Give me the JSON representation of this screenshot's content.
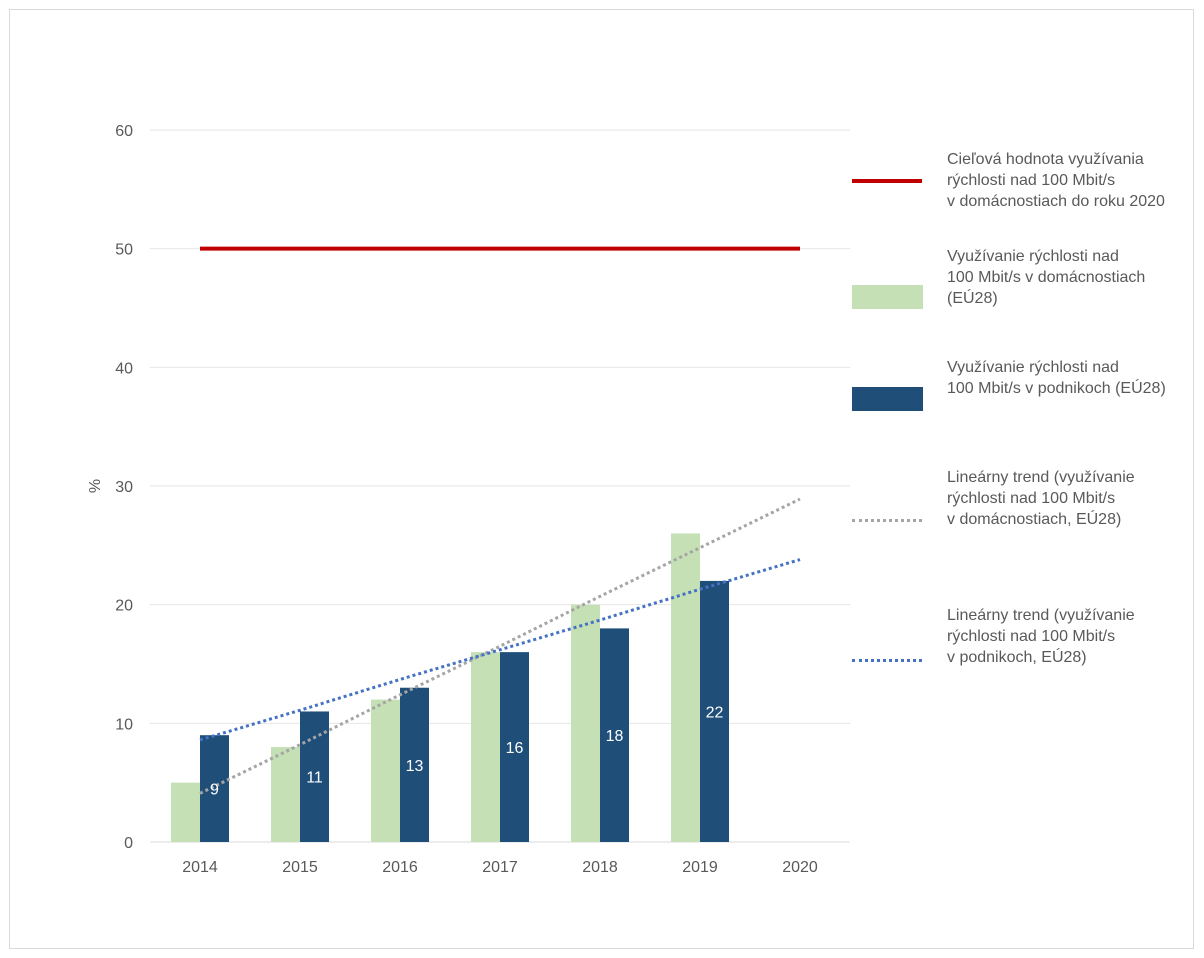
{
  "chart_data": {
    "type": "bar",
    "categories": [
      "2014",
      "2015",
      "2016",
      "2017",
      "2018",
      "2019",
      "2020"
    ],
    "ylabel": "%",
    "ylim": [
      0,
      60
    ],
    "yticks": [
      0,
      10,
      20,
      30,
      40,
      50,
      60
    ],
    "grid": true,
    "legend_position": "right",
    "series": [
      {
        "kind": "bar",
        "color": "#c5e0b4",
        "values": [
          5,
          8,
          12,
          16,
          20,
          26,
          null
        ],
        "legend_lines": [
          "Využívanie rýchlosti nad",
          "100 Mbit/s v domácnostiach",
          "(EÚ28)"
        ]
      },
      {
        "kind": "bar",
        "color": "#1f4e79",
        "values": [
          9,
          11,
          13,
          16,
          18,
          22,
          null
        ],
        "data_labels": [
          "9",
          "11",
          "13",
          "16",
          "18",
          "22"
        ],
        "legend_lines": [
          "Využívanie rýchlosti nad",
          "100 Mbit/s v podnikoch (EÚ28)"
        ]
      },
      {
        "kind": "target-line",
        "color": "#c00000",
        "values": [
          50,
          50,
          50,
          50,
          50,
          50,
          50
        ],
        "legend_lines": [
          "Cieľová hodnota využívania",
          "rýchlosti nad 100 Mbit/s",
          "v domácnostiach do roku 2020"
        ]
      },
      {
        "kind": "trend",
        "color": "#a5a5a5",
        "values": [
          4.1,
          8.2,
          12.4,
          16.5,
          20.7,
          24.8,
          28.9
        ],
        "legend_lines": [
          "Lineárny trend (využívanie",
          "rýchlosti nad 100 Mbit/s",
          "v domácnostiach, EÚ28)"
        ]
      },
      {
        "kind": "trend",
        "color": "#4472c4",
        "values": [
          8.6,
          11.1,
          13.7,
          16.2,
          18.7,
          21.3,
          23.8
        ],
        "legend_lines": [
          "Lineárny trend (využívanie",
          "rýchlosti nad 100 Mbit/s",
          "v podnikoch, EÚ28)"
        ]
      }
    ]
  }
}
